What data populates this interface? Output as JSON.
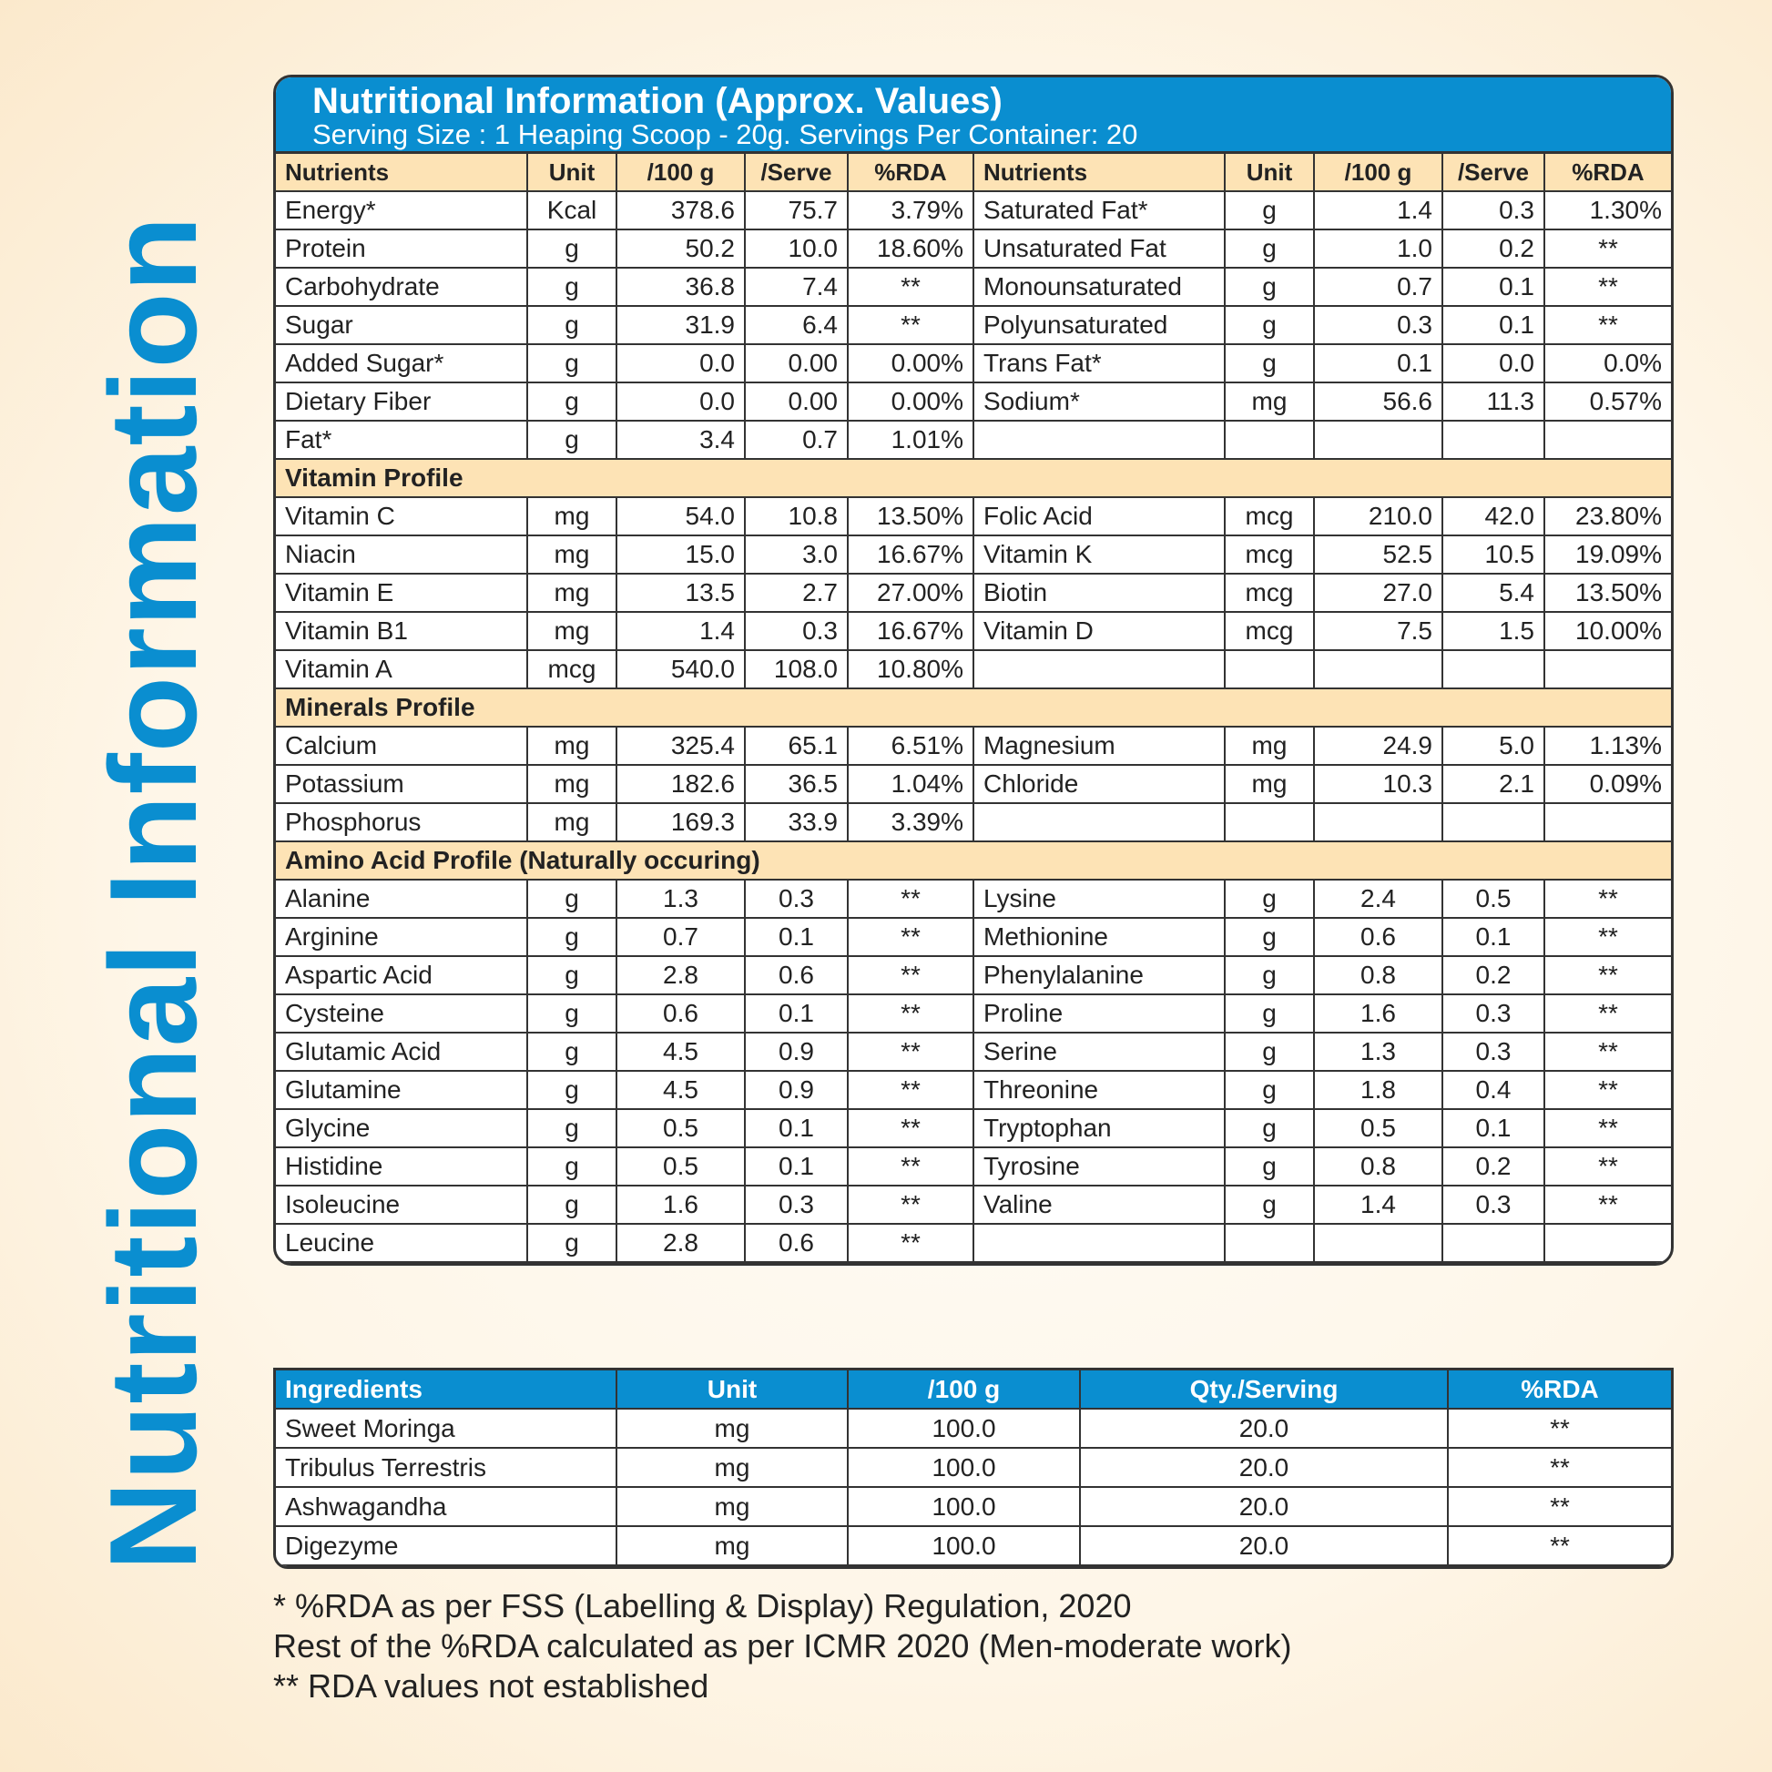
{
  "side_title": "Nutritional Information",
  "header": {
    "title": "Nutritional Information (Approx. Values)",
    "subtitle": "Serving Size : 1 Heaping Scoop - 20g. Servings Per Container: 20"
  },
  "columns": [
    "Nutrients",
    "Unit",
    "/100 g",
    "/Serve",
    "%RDA",
    "Nutrients",
    "Unit",
    "/100 g",
    "/Serve",
    "%RDA"
  ],
  "sections": [
    {
      "title": "",
      "rows": [
        [
          "Energy*",
          "Kcal",
          "378.6",
          "75.7",
          "3.79%",
          "Saturated Fat*",
          "g",
          "1.4",
          "0.3",
          "1.30%"
        ],
        [
          "Protein",
          "g",
          "50.2",
          "10.0",
          "18.60%",
          "Unsaturated Fat",
          "g",
          "1.0",
          "0.2",
          "**"
        ],
        [
          "Carbohydrate",
          "g",
          "36.8",
          "7.4",
          "**",
          "Monounsaturated",
          "g",
          "0.7",
          "0.1",
          "**"
        ],
        [
          "Sugar",
          "g",
          "31.9",
          "6.4",
          "**",
          "Polyunsaturated",
          "g",
          "0.3",
          "0.1",
          "**"
        ],
        [
          "Added Sugar*",
          "g",
          "0.0",
          "0.00",
          "0.00%",
          "Trans Fat*",
          "g",
          "0.1",
          "0.0",
          "0.0%"
        ],
        [
          "Dietary Fiber",
          "g",
          "0.0",
          "0.00",
          "0.00%",
          "Sodium*",
          "mg",
          "56.6",
          "11.3",
          "0.57%"
        ],
        [
          "Fat*",
          "g",
          "3.4",
          "0.7",
          "1.01%",
          "",
          "",
          "",
          "",
          ""
        ]
      ]
    },
    {
      "title": "Vitamin Profile",
      "rows": [
        [
          "Vitamin C",
          "mg",
          "54.0",
          "10.8",
          "13.50%",
          "Folic Acid",
          "mcg",
          "210.0",
          "42.0",
          "23.80%"
        ],
        [
          "Niacin",
          "mg",
          "15.0",
          "3.0",
          "16.67%",
          "Vitamin K",
          "mcg",
          "52.5",
          "10.5",
          "19.09%"
        ],
        [
          "Vitamin E",
          "mg",
          "13.5",
          "2.7",
          "27.00%",
          "Biotin",
          "mcg",
          "27.0",
          "5.4",
          "13.50%"
        ],
        [
          "Vitamin B1",
          "mg",
          "1.4",
          "0.3",
          "16.67%",
          "Vitamin D",
          "mcg",
          "7.5",
          "1.5",
          "10.00%"
        ],
        [
          "Vitamin A",
          "mcg",
          "540.0",
          "108.0",
          "10.80%",
          "",
          "",
          "",
          "",
          ""
        ]
      ]
    },
    {
      "title": "Minerals Profile",
      "rows": [
        [
          "Calcium",
          "mg",
          "325.4",
          "65.1",
          "6.51%",
          "Magnesium",
          "mg",
          "24.9",
          "5.0",
          "1.13%"
        ],
        [
          "Potassium",
          "mg",
          "182.6",
          "36.5",
          "1.04%",
          "Chloride",
          "mg",
          "10.3",
          "2.1",
          "0.09%"
        ],
        [
          "Phosphorus",
          "mg",
          "169.3",
          "33.9",
          "3.39%",
          "",
          "",
          "",
          "",
          ""
        ]
      ]
    },
    {
      "title": "Amino Acid Profile (Naturally occuring)",
      "centered": true,
      "rows": [
        [
          "Alanine",
          "g",
          "1.3",
          "0.3",
          "**",
          "Lysine",
          "g",
          "2.4",
          "0.5",
          "**"
        ],
        [
          "Arginine",
          "g",
          "0.7",
          "0.1",
          "**",
          "Methionine",
          "g",
          "0.6",
          "0.1",
          "**"
        ],
        [
          "Aspartic Acid",
          "g",
          "2.8",
          "0.6",
          "**",
          "Phenylalanine",
          "g",
          "0.8",
          "0.2",
          "**"
        ],
        [
          "Cysteine",
          "g",
          "0.6",
          "0.1",
          "**",
          "Proline",
          "g",
          "1.6",
          "0.3",
          "**"
        ],
        [
          "Glutamic Acid",
          "g",
          "4.5",
          "0.9",
          "**",
          "Serine",
          "g",
          "1.3",
          "0.3",
          "**"
        ],
        [
          "Glutamine",
          "g",
          "4.5",
          "0.9",
          "**",
          "Threonine",
          "g",
          "1.8",
          "0.4",
          "**"
        ],
        [
          "Glycine",
          "g",
          "0.5",
          "0.1",
          "**",
          "Tryptophan",
          "g",
          "0.5",
          "0.1",
          "**"
        ],
        [
          "Histidine",
          "g",
          "0.5",
          "0.1",
          "**",
          "Tyrosine",
          "g",
          "0.8",
          "0.2",
          "**"
        ],
        [
          "Isoleucine",
          "g",
          "1.6",
          "0.3",
          "**",
          "Valine",
          "g",
          "1.4",
          "0.3",
          "**"
        ],
        [
          "Leucine",
          "g",
          "2.8",
          "0.6",
          "**",
          "",
          "",
          "",
          "",
          ""
        ]
      ]
    }
  ],
  "ingredients": {
    "columns": [
      "Ingredients",
      "Unit",
      "/100 g",
      "Qty./Serving",
      "%RDA"
    ],
    "rows": [
      [
        "Sweet Moringa",
        "mg",
        "100.0",
        "20.0",
        "**"
      ],
      [
        "Tribulus Terrestris",
        "mg",
        "100.0",
        "20.0",
        "**"
      ],
      [
        "Ashwagandha",
        "mg",
        "100.0",
        "20.0",
        "**"
      ],
      [
        "Digezyme",
        "mg",
        "100.0",
        "20.0",
        "**"
      ]
    ]
  },
  "footnotes": [
    "* %RDA as per FSS (Labelling & Display) Regulation, 2020",
    "Rest of the %RDA calculated as per ICMR 2020 (Men-moderate work)",
    "** RDA values not established"
  ],
  "colors": {
    "brand_blue": "#0a8ed0",
    "section_bg": "#fde3b5"
  }
}
